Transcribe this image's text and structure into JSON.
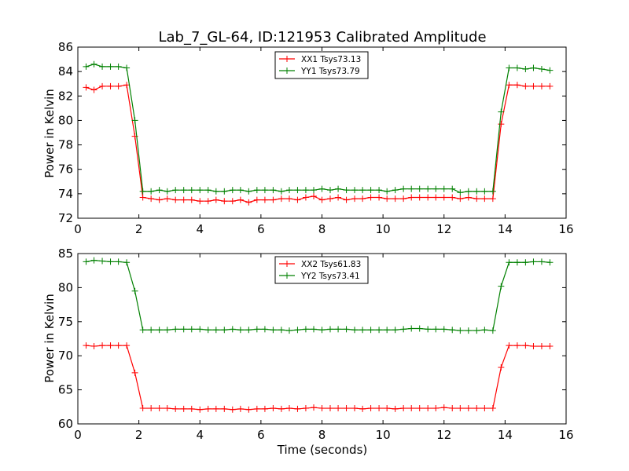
{
  "chart_data": [
    {
      "type": "line",
      "title": "Lab_7_GL-64, ID:121953 Calibrated Amplitude",
      "xlabel": "",
      "ylabel": "Power in Kelvin",
      "xlim": [
        0,
        16
      ],
      "ylim": [
        72,
        86
      ],
      "xticks": [
        "0",
        "2",
        "4",
        "6",
        "8",
        "10",
        "12",
        "14",
        "16"
      ],
      "yticks": [
        "72",
        "74",
        "76",
        "78",
        "80",
        "82",
        "84",
        "86"
      ],
      "grid": false,
      "legend": "top-center",
      "x": [
        0.27,
        0.53,
        0.8,
        1.07,
        1.33,
        1.6,
        1.87,
        2.13,
        2.4,
        2.67,
        2.93,
        3.2,
        3.47,
        3.73,
        4.0,
        4.27,
        4.53,
        4.8,
        5.07,
        5.33,
        5.6,
        5.87,
        6.13,
        6.4,
        6.67,
        6.93,
        7.2,
        7.47,
        7.73,
        8.0,
        8.27,
        8.53,
        8.8,
        9.07,
        9.33,
        9.6,
        9.87,
        10.13,
        10.4,
        10.67,
        10.93,
        11.2,
        11.47,
        11.73,
        12.0,
        12.27,
        12.53,
        12.8,
        13.07,
        13.33,
        13.6,
        13.87,
        14.13,
        14.4,
        14.67,
        14.93,
        15.2,
        15.47
      ],
      "series": [
        {
          "name": "XX1 Tsys73.13",
          "color": "#ff0000",
          "values": [
            82.7,
            82.5,
            82.8,
            82.8,
            82.8,
            82.9,
            78.7,
            73.7,
            73.6,
            73.5,
            73.6,
            73.5,
            73.5,
            73.5,
            73.4,
            73.4,
            73.5,
            73.4,
            73.4,
            73.5,
            73.3,
            73.5,
            73.5,
            73.5,
            73.6,
            73.6,
            73.5,
            73.7,
            73.8,
            73.5,
            73.6,
            73.7,
            73.5,
            73.6,
            73.6,
            73.7,
            73.7,
            73.6,
            73.6,
            73.6,
            73.7,
            73.7,
            73.7,
            73.7,
            73.7,
            73.7,
            73.6,
            73.7,
            73.6,
            73.6,
            73.6,
            79.7,
            82.9,
            82.9,
            82.8,
            82.8,
            82.8,
            82.8
          ]
        },
        {
          "name": "YY1 Tsys73.79",
          "color": "#008000",
          "values": [
            84.4,
            84.6,
            84.4,
            84.4,
            84.4,
            84.3,
            80.0,
            74.2,
            74.2,
            74.3,
            74.2,
            74.3,
            74.3,
            74.3,
            74.3,
            74.3,
            74.2,
            74.2,
            74.3,
            74.3,
            74.2,
            74.3,
            74.3,
            74.3,
            74.2,
            74.3,
            74.3,
            74.3,
            74.3,
            74.4,
            74.3,
            74.4,
            74.3,
            74.3,
            74.3,
            74.3,
            74.3,
            74.2,
            74.3,
            74.4,
            74.4,
            74.4,
            74.4,
            74.4,
            74.4,
            74.4,
            74.1,
            74.2,
            74.2,
            74.2,
            74.2,
            80.7,
            84.3,
            84.3,
            84.2,
            84.3,
            84.2,
            84.1
          ]
        }
      ]
    },
    {
      "type": "line",
      "title": "",
      "xlabel": "Time (seconds)",
      "ylabel": "Power in Kelvin",
      "xlim": [
        0,
        16
      ],
      "ylim": [
        60,
        85
      ],
      "xticks": [
        "0",
        "2",
        "4",
        "6",
        "8",
        "10",
        "12",
        "14",
        "16"
      ],
      "yticks": [
        "60",
        "65",
        "70",
        "75",
        "80",
        "85"
      ],
      "grid": false,
      "legend": "top-center",
      "x": [
        0.27,
        0.53,
        0.8,
        1.07,
        1.33,
        1.6,
        1.87,
        2.13,
        2.4,
        2.67,
        2.93,
        3.2,
        3.47,
        3.73,
        4.0,
        4.27,
        4.53,
        4.8,
        5.07,
        5.33,
        5.6,
        5.87,
        6.13,
        6.4,
        6.67,
        6.93,
        7.2,
        7.47,
        7.73,
        8.0,
        8.27,
        8.53,
        8.8,
        9.07,
        9.33,
        9.6,
        9.87,
        10.13,
        10.4,
        10.67,
        10.93,
        11.2,
        11.47,
        11.73,
        12.0,
        12.27,
        12.53,
        12.8,
        13.07,
        13.33,
        13.6,
        13.87,
        14.13,
        14.4,
        14.67,
        14.93,
        15.2,
        15.47
      ],
      "series": [
        {
          "name": "XX2 Tsys61.83",
          "color": "#ff0000",
          "values": [
            71.5,
            71.4,
            71.5,
            71.5,
            71.5,
            71.5,
            67.5,
            62.3,
            62.3,
            62.3,
            62.3,
            62.2,
            62.2,
            62.2,
            62.1,
            62.2,
            62.2,
            62.2,
            62.1,
            62.2,
            62.1,
            62.2,
            62.2,
            62.3,
            62.2,
            62.3,
            62.2,
            62.3,
            62.4,
            62.3,
            62.3,
            62.3,
            62.3,
            62.3,
            62.2,
            62.3,
            62.3,
            62.3,
            62.2,
            62.3,
            62.3,
            62.3,
            62.3,
            62.3,
            62.4,
            62.3,
            62.3,
            62.3,
            62.3,
            62.3,
            62.3,
            68.3,
            71.5,
            71.5,
            71.5,
            71.4,
            71.4,
            71.4
          ]
        },
        {
          "name": "YY2 Tsys73.41",
          "color": "#008000",
          "values": [
            83.8,
            84.0,
            83.9,
            83.8,
            83.8,
            83.7,
            79.5,
            73.8,
            73.8,
            73.8,
            73.8,
            73.9,
            73.9,
            73.9,
            73.9,
            73.8,
            73.8,
            73.8,
            73.9,
            73.8,
            73.8,
            73.9,
            73.9,
            73.8,
            73.8,
            73.7,
            73.8,
            73.9,
            73.9,
            73.8,
            73.9,
            73.9,
            73.9,
            73.8,
            73.8,
            73.8,
            73.8,
            73.8,
            73.8,
            73.9,
            74.0,
            74.0,
            73.9,
            73.9,
            73.9,
            73.8,
            73.7,
            73.7,
            73.7,
            73.8,
            73.7,
            80.2,
            83.7,
            83.7,
            83.7,
            83.8,
            83.8,
            83.7
          ]
        }
      ]
    }
  ]
}
